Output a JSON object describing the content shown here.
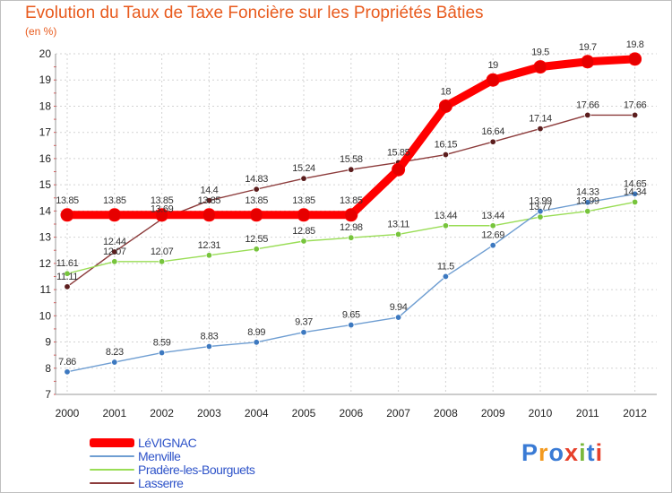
{
  "title": "Evolution du Taux de Taxe Foncière sur les Propriétés Bâties",
  "subtitle": "(en %)",
  "brand": {
    "text": "Proxiti",
    "letters": [
      "P",
      "r",
      "o",
      "x",
      "i",
      "t",
      "i"
    ],
    "colors": [
      "#3a7bd5",
      "#f39a1f",
      "#3a7bd5",
      "#e6402b",
      "#7ab83c",
      "#3a7bd5",
      "#e6402b"
    ]
  },
  "chart_data": {
    "type": "line",
    "title": "Evolution du Taux de Taxe Foncière sur les Propriétés Bâties",
    "ylabel": "(en %)",
    "xlabel": "",
    "ylim": [
      7,
      20
    ],
    "yticks": [
      7,
      8,
      9,
      10,
      11,
      12,
      13,
      14,
      15,
      16,
      17,
      18,
      19,
      20
    ],
    "x": [
      "2000",
      "2001",
      "2002",
      "2003",
      "2004",
      "2005",
      "2006",
      "2007",
      "2008",
      "2009",
      "2010",
      "2011",
      "2012"
    ],
    "series": [
      {
        "name": "LéVIGNAC",
        "color": "#ff0000",
        "marker": "#e60000",
        "emphasis": true,
        "values": [
          13.85,
          13.85,
          13.85,
          13.85,
          13.85,
          13.85,
          13.85,
          15.58,
          18,
          19,
          19.5,
          19.7,
          19.8
        ],
        "labels": [
          "13.85",
          "13.85",
          "13.85",
          "13.85",
          "13.85",
          "13.85",
          "13.85",
          "",
          "18",
          "19",
          "19.5",
          "19.7",
          "19.8"
        ]
      },
      {
        "name": "Menville",
        "color": "#6f9ed2",
        "marker": "#3d79c0",
        "values": [
          7.86,
          8.23,
          8.59,
          8.83,
          8.99,
          9.37,
          9.65,
          9.94,
          11.5,
          12.69,
          13.99,
          14.33,
          14.65
        ],
        "labels": [
          "7.86",
          "8.23",
          "8.59",
          "8.83",
          "8.99",
          "9.37",
          "9.65",
          "9.94",
          "11.5",
          "12.69",
          "13.99",
          "14.33",
          "14.65"
        ]
      },
      {
        "name": "Pradère-les-Bourguets",
        "color": "#99dd55",
        "marker": "#77c43c",
        "values": [
          11.61,
          12.07,
          12.07,
          12.31,
          12.55,
          12.85,
          12.98,
          13.11,
          13.44,
          13.44,
          13.77,
          13.99,
          14.34
        ],
        "labels": [
          "11.61",
          "12.07",
          "12.07",
          "12.31",
          "12.55",
          "12.85",
          "12.98",
          "13.11",
          "13.44",
          "13.44",
          "13.77",
          "13.99",
          "14.34"
        ]
      },
      {
        "name": "Lasserre",
        "color": "#8c3b3b",
        "marker": "#5c1e1e",
        "values": [
          11.11,
          12.44,
          13.69,
          14.4,
          14.83,
          15.24,
          15.58,
          15.85,
          16.15,
          16.64,
          17.14,
          17.66,
          17.66
        ],
        "labels": [
          "11.11",
          "12.44",
          "13.69",
          "14.4",
          "14.83",
          "15.24",
          "15.58",
          "15.85",
          "16.15",
          "16.64",
          "17.14",
          "17.66",
          "17.66"
        ]
      }
    ]
  }
}
